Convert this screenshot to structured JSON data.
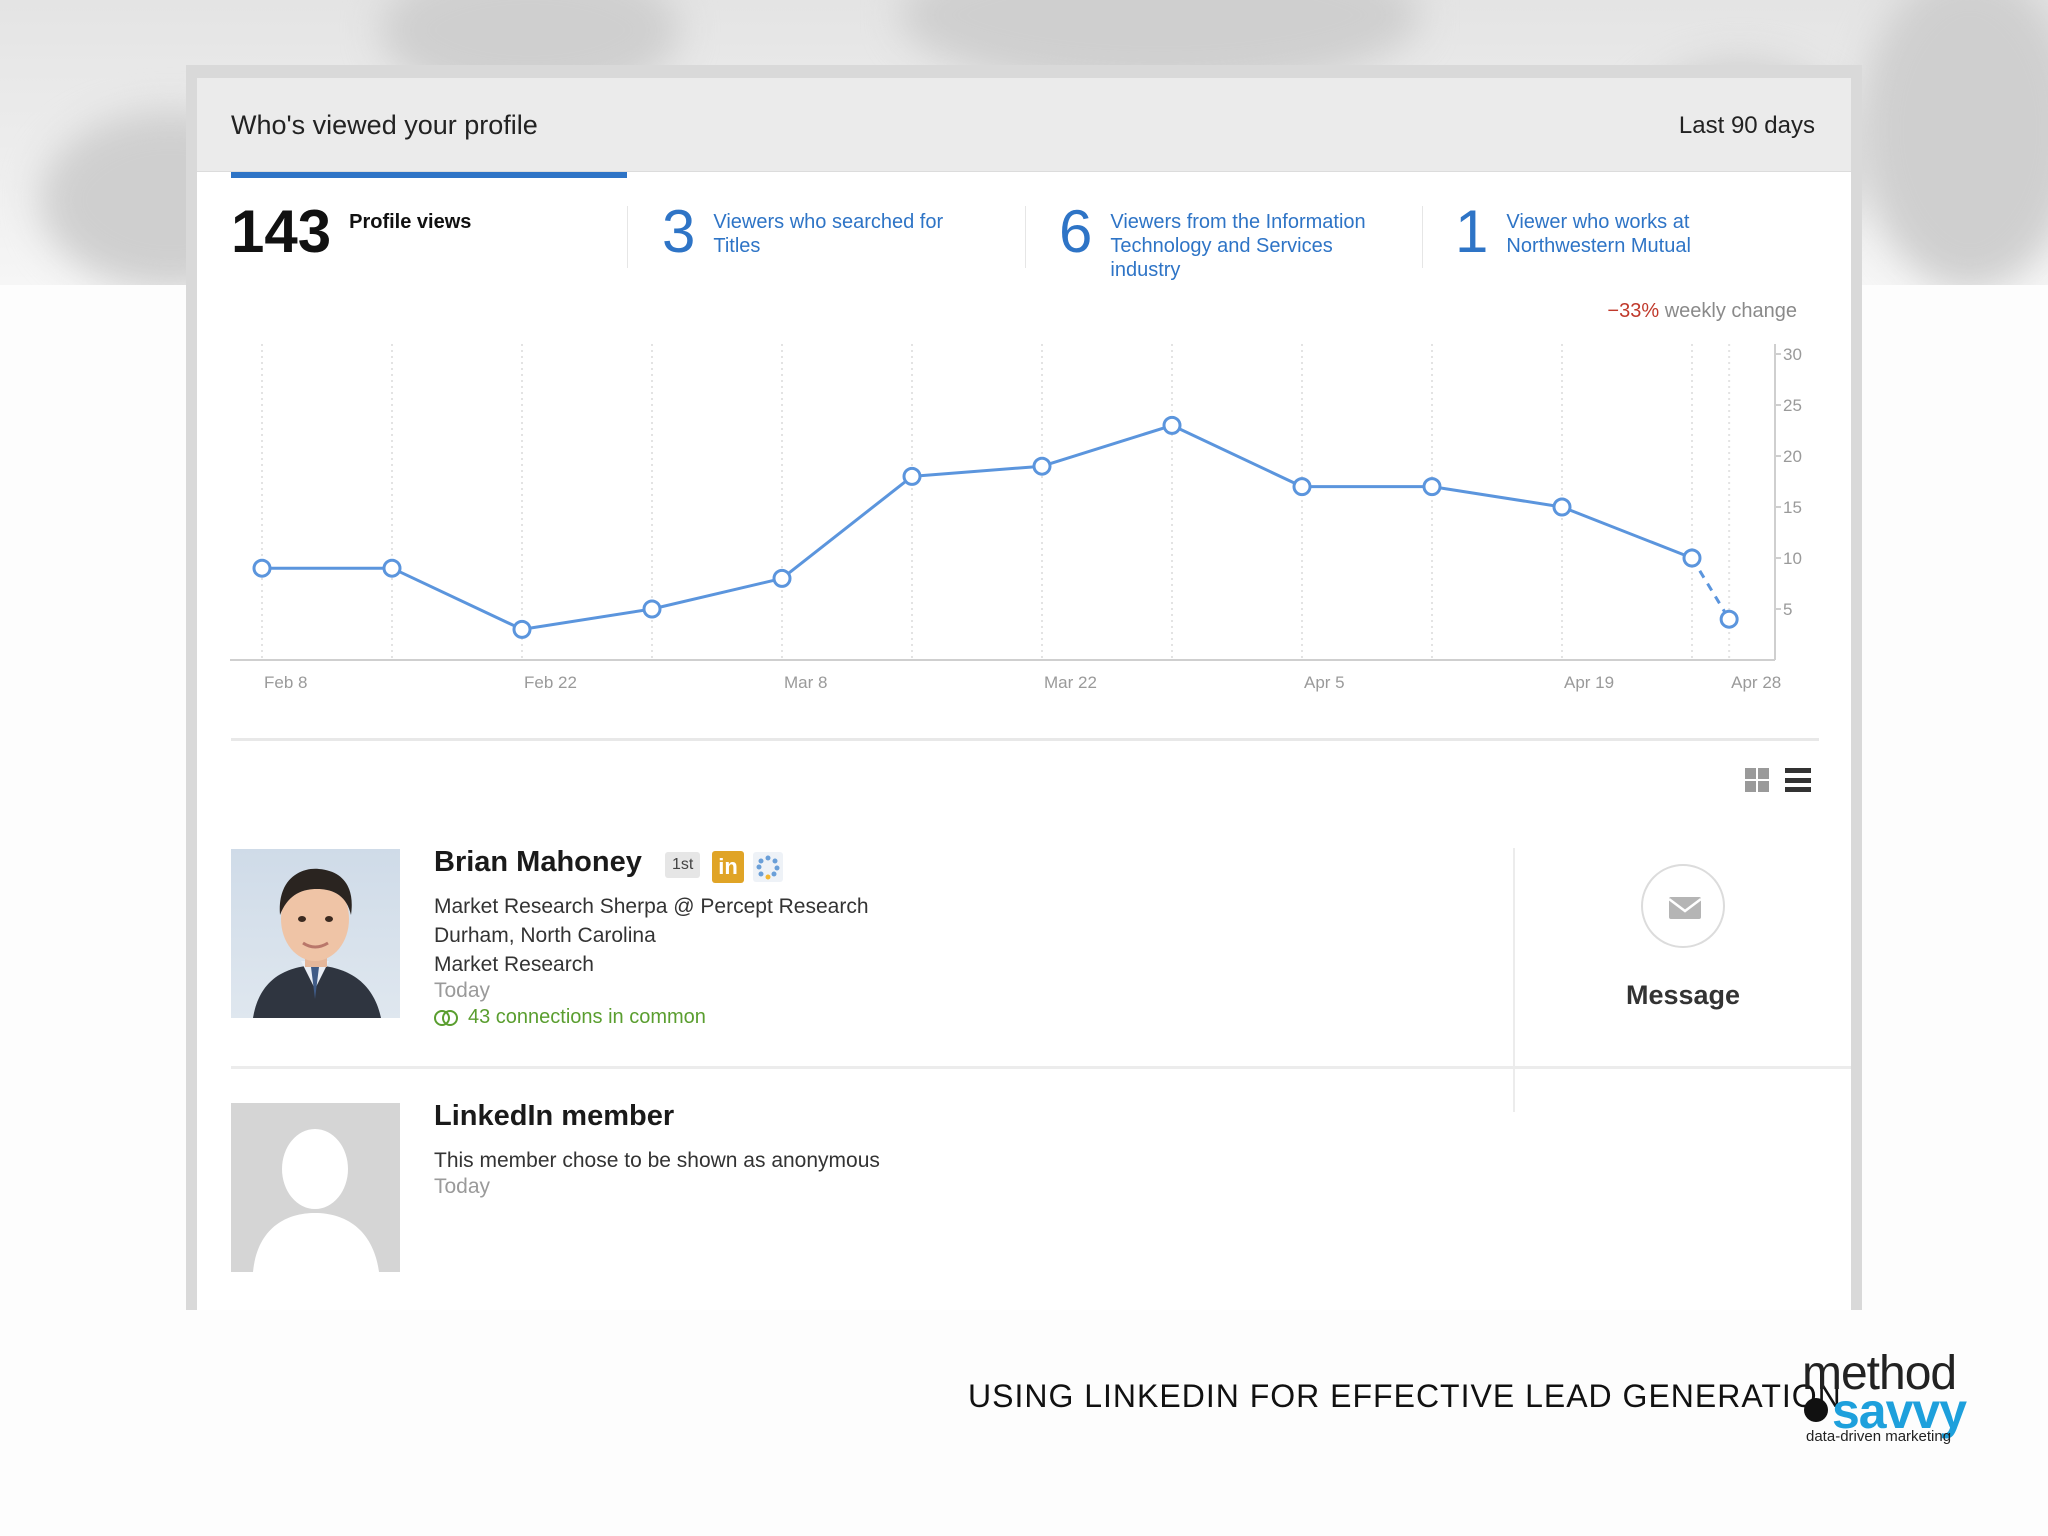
{
  "header": {
    "title": "Who's viewed your profile",
    "range": "Last 90 days"
  },
  "stats": [
    {
      "number": "143",
      "label": "Profile views"
    },
    {
      "number": "3",
      "label": "Viewers who searched for Titles"
    },
    {
      "number": "6",
      "label": "Viewers from the Information Technology and Services industry"
    },
    {
      "number": "1",
      "label": "Viewer who works at Northwestern Mutual"
    }
  ],
  "weekly_change": {
    "value": "−33%",
    "label": "weekly change"
  },
  "chart_data": {
    "type": "line",
    "x": [
      "Feb 8",
      "Feb 15",
      "Feb 22",
      "Mar 1",
      "Mar 8",
      "Mar 15",
      "Mar 22",
      "Mar 29",
      "Apr 5",
      "Apr 12",
      "Apr 19",
      "Apr 26",
      "Apr 28"
    ],
    "series": [
      {
        "values": [
          9,
          9,
          3,
          5,
          8,
          18,
          19,
          23,
          17,
          17,
          15,
          10,
          4
        ]
      }
    ],
    "last_segment_dashed": true,
    "xticks": [
      "Feb 8",
      "Feb 22",
      "Mar 8",
      "Mar 22",
      "Apr 5",
      "Apr 19",
      "Apr 28"
    ],
    "yticks": [
      "30",
      "25",
      "20",
      "15",
      "10",
      "5"
    ],
    "ylim": [
      0,
      30
    ],
    "y_axis_side": "right",
    "grid": "vertical dotted",
    "line_color": "#5b95dd"
  },
  "viewers": [
    {
      "name": "Brian Mahoney",
      "degree": "1st",
      "in_badge": "in",
      "title": "Market Research Sherpa @ Percept Research",
      "location": "Durham, North Carolina",
      "industry": "Market Research",
      "when": "Today",
      "common": "43 connections in common",
      "action": "Message"
    },
    {
      "name": "LinkedIn member",
      "title": "This member chose to be shown as anonymous",
      "when": "Today"
    }
  ],
  "footer": {
    "caption": "USING LINKEDIN FOR EFFECTIVE LEAD GENERATION",
    "logo_word1": "method",
    "logo_word2": "savvy",
    "logo_tagline": "data-driven marketing"
  },
  "colors": {
    "accent": "#2e74c6",
    "negative": "#c0392b",
    "connections": "#5a9e2f",
    "logo": "#1ea0dc"
  }
}
